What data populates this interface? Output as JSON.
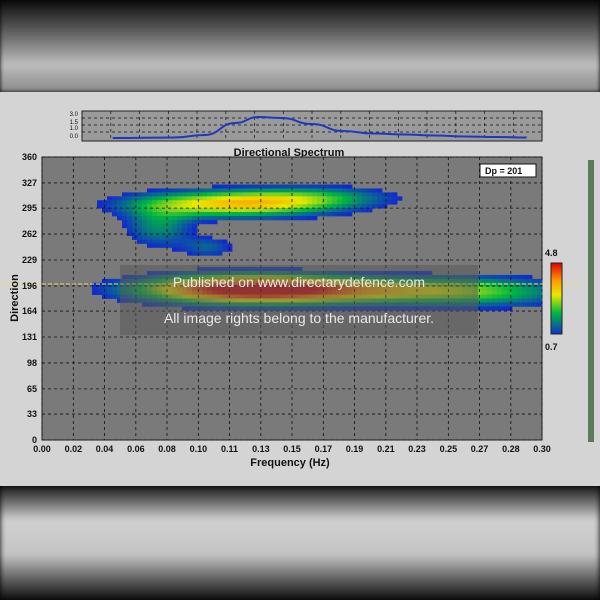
{
  "chart_data": {
    "type": "heatmap",
    "title": "Directional Spectrum",
    "xlabel": "Frequency (Hz)",
    "ylabel": "Direction",
    "x_ticks": [
      "0.00",
      "0.02",
      "0.04",
      "0.06",
      "0.08",
      "0.10",
      "0.11",
      "0.13",
      "0.15",
      "0.17",
      "0.19",
      "0.21",
      "0.23",
      "0.25",
      "0.27",
      "0.28",
      "0.30"
    ],
    "x_tick_values": [
      0.0,
      0.0188,
      0.0375,
      0.0563,
      0.075,
      0.0938,
      0.1125,
      0.1313,
      0.15,
      0.1688,
      0.1875,
      0.2063,
      0.225,
      0.2438,
      0.2625,
      0.2813,
      0.3
    ],
    "y_ticks": [
      "360",
      "327",
      "295",
      "262",
      "229",
      "196",
      "164",
      "131",
      "98",
      "65",
      "33",
      "0"
    ],
    "y_tick_values": [
      360,
      327,
      295,
      262,
      229,
      196,
      164,
      131,
      98,
      65,
      33,
      0
    ],
    "xlim": [
      0,
      0.3
    ],
    "ylim": [
      0,
      360
    ],
    "grid": true,
    "peak_direction_label": "Dp = 201",
    "peak_direction": 201,
    "colorbar": {
      "max_label": "4.8",
      "min_label": "0.7",
      "max": 4.8,
      "min": 0.7
    },
    "energy_blobs": [
      {
        "f": 0.115,
        "d": 300,
        "sf": 0.045,
        "sd": 12,
        "amp": 3.2
      },
      {
        "f": 0.165,
        "d": 310,
        "sf": 0.035,
        "sd": 10,
        "amp": 1.2
      },
      {
        "f": 0.07,
        "d": 270,
        "sf": 0.015,
        "sd": 18,
        "amp": 1.5
      },
      {
        "f": 0.12,
        "d": 192,
        "sf": 0.045,
        "sd": 13,
        "amp": 4.8
      },
      {
        "f": 0.2,
        "d": 190,
        "sf": 0.05,
        "sd": 12,
        "amp": 2.4
      },
      {
        "f": 0.27,
        "d": 188,
        "sf": 0.04,
        "sd": 15,
        "amp": 1.4
      },
      {
        "f": 0.1,
        "d": 245,
        "sf": 0.012,
        "sd": 10,
        "amp": 1.1
      }
    ],
    "frequency_spectrum": {
      "y_ticks": [
        "3.0",
        "1.5",
        "1.0",
        "0.0"
      ],
      "curve": [
        [
          0.02,
          0.1
        ],
        [
          0.06,
          0.15
        ],
        [
          0.08,
          0.4
        ],
        [
          0.1,
          1.6
        ],
        [
          0.115,
          2.2
        ],
        [
          0.13,
          2.1
        ],
        [
          0.15,
          1.5
        ],
        [
          0.17,
          0.8
        ],
        [
          0.19,
          0.55
        ],
        [
          0.21,
          0.45
        ],
        [
          0.23,
          0.35
        ],
        [
          0.25,
          0.25
        ],
        [
          0.27,
          0.2
        ],
        [
          0.29,
          0.15
        ]
      ]
    }
  },
  "watermark": {
    "line1": "Published on www.directarydefence.com",
    "line2": "All image rights belong to the manufacturer."
  }
}
